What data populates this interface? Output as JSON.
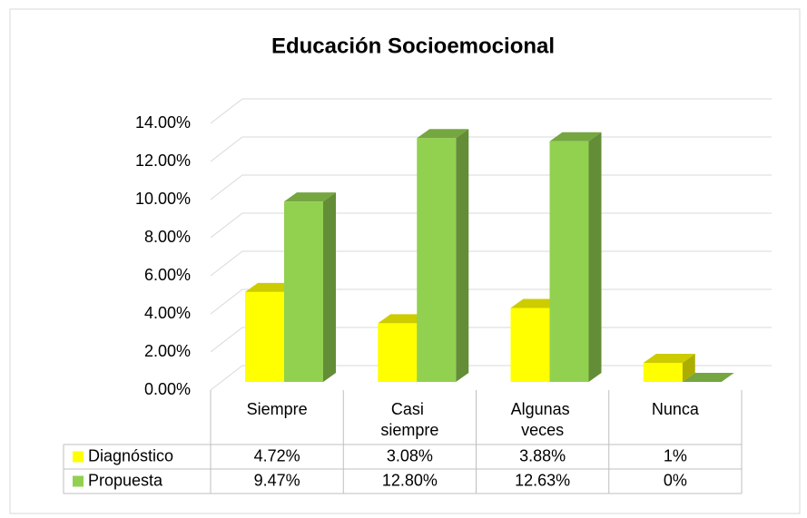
{
  "chart_data": {
    "type": "bar3d",
    "title": "Educación Socioemocional",
    "categories": [
      "Siempre",
      "Casi siempre",
      "Algunas veces",
      "Nunca"
    ],
    "series": [
      {
        "name": "Diagnóstico",
        "color": "#ffff00",
        "values": [
          4.72,
          3.08,
          3.88,
          1
        ],
        "value_labels": [
          "4.72%",
          "3.08%",
          "3.88%",
          "1%"
        ]
      },
      {
        "name": "Propuesta",
        "color": "#92d050",
        "values": [
          9.47,
          12.8,
          12.63,
          0
        ],
        "value_labels": [
          "9.47%",
          "12.80%",
          "12.63%",
          "0%"
        ]
      }
    ],
    "ylim": [
      0,
      14
    ],
    "yticks": [
      {
        "value": 0,
        "label": "0.00%"
      },
      {
        "value": 2,
        "label": "2.00%"
      },
      {
        "value": 4,
        "label": "4.00%"
      },
      {
        "value": 6,
        "label": "6.00%"
      },
      {
        "value": 8,
        "label": "8.00%"
      },
      {
        "value": 10,
        "label": "10.00%"
      },
      {
        "value": 12,
        "label": "12.00%"
      },
      {
        "value": 14,
        "label": "14.00%"
      }
    ],
    "grid": true,
    "data_table": true
  }
}
